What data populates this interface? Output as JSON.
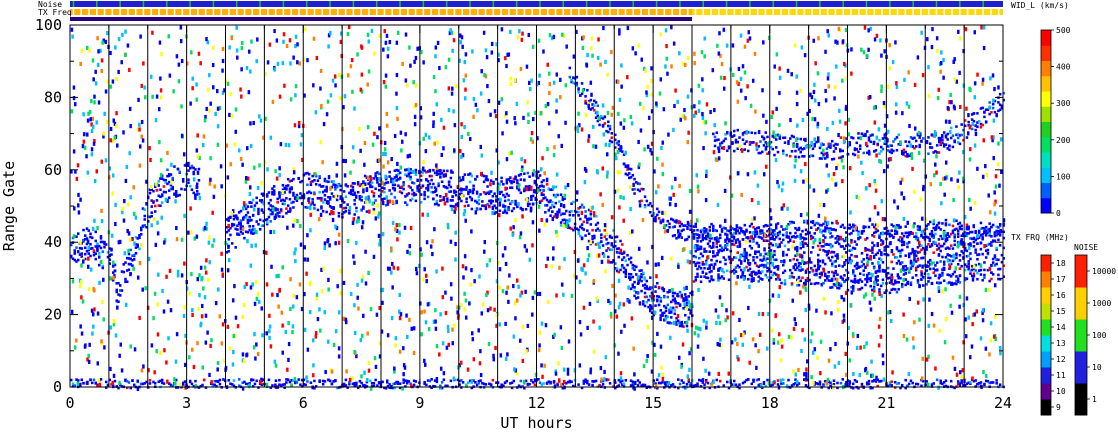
{
  "chart_data": {
    "type": "heatmap",
    "xlabel": "UT hours",
    "ylabel": "Range Gate",
    "xlim": [
      0,
      24
    ],
    "ylim": [
      0,
      100
    ],
    "x_ticks": [
      "0",
      "3",
      "6",
      "9",
      "12",
      "15",
      "18",
      "21",
      "24"
    ],
    "y_ticks": [
      "0",
      "20",
      "40",
      "60",
      "80",
      "100"
    ],
    "vertical_lines_hours": [
      1,
      2,
      3,
      4,
      5,
      6,
      7,
      8,
      9,
      10,
      11,
      12,
      13,
      14,
      15,
      16,
      17,
      18,
      19,
      20,
      21,
      22,
      23
    ],
    "top_strips": [
      {
        "label": "Noise",
        "segments": [
          {
            "from": 0,
            "to": 24,
            "color": "#2020d0"
          }
        ],
        "ticks_color": "#20c020"
      },
      {
        "label": "TX Freq",
        "segments": [
          {
            "from": 0,
            "to": 16,
            "color": "#ffb000"
          },
          {
            "from": 16,
            "to": 24,
            "color": "#ffd800"
          }
        ],
        "ticks_color": "#ffffff"
      },
      {
        "label": "",
        "segments": [
          {
            "from": 0,
            "to": 16,
            "color": "#2a0080"
          },
          {
            "from": 16,
            "to": 24,
            "color": "#ffffff"
          }
        ]
      }
    ],
    "width_scale": {
      "title": "WID_L (km/s)",
      "min": 0,
      "max": 500,
      "ticks": [
        "0",
        "100",
        "200",
        "300",
        "400",
        "500"
      ],
      "colors": [
        "#0000ff",
        "#0060ff",
        "#00c0ff",
        "#00e0c0",
        "#00e060",
        "#20d020",
        "#a0e000",
        "#ffff00",
        "#ffc000",
        "#ff8000",
        "#ff3000",
        "#ff0000"
      ]
    },
    "txfreq_scale": {
      "title": "TX FRQ (MHz)",
      "ticks": [
        "9",
        "10",
        "11",
        "12",
        "13",
        "14",
        "15",
        "16",
        "17",
        "18"
      ],
      "colors": [
        "#000000",
        "#600090",
        "#2020e0",
        "#00a0ff",
        "#00e0e0",
        "#20e020",
        "#c0e000",
        "#ffd000",
        "#ff8000",
        "#ff2000"
      ]
    },
    "noise_scale": {
      "title": "NOISE",
      "ticks": [
        "1",
        "10",
        "100",
        "1000",
        "10000"
      ],
      "colors": [
        "#000000",
        "#2020e0",
        "#20e020",
        "#ffd000",
        "#ff2000"
      ]
    },
    "scatter_bands": [
      {
        "points": [
          [
            0.0,
            38
          ],
          [
            0.5,
            40
          ],
          [
            1.0,
            36
          ],
          [
            1.2,
            26
          ],
          [
            1.5,
            35
          ],
          [
            2.0,
            50
          ],
          [
            2.5,
            57
          ],
          [
            3.0,
            58
          ],
          [
            3.3,
            56
          ]
        ],
        "width": 9
      },
      {
        "points": [
          [
            4.0,
            42
          ],
          [
            5.0,
            50
          ],
          [
            6.0,
            55
          ],
          [
            7.0,
            52
          ],
          [
            8.0,
            55
          ],
          [
            9.0,
            56
          ],
          [
            10.0,
            55
          ],
          [
            11.0,
            53
          ],
          [
            12.0,
            55
          ],
          [
            12.6,
            50
          ],
          [
            13.0,
            47
          ],
          [
            13.5,
            44
          ],
          [
            14.0,
            38
          ],
          [
            14.5,
            30
          ],
          [
            15.0,
            25
          ],
          [
            15.5,
            22
          ],
          [
            16.0,
            22
          ]
        ],
        "width": 10
      },
      {
        "points": [
          [
            16.0,
            36
          ],
          [
            17.0,
            37
          ],
          [
            18.0,
            36
          ],
          [
            19.0,
            35
          ],
          [
            20.0,
            34
          ],
          [
            21.0,
            33
          ],
          [
            22.0,
            35
          ],
          [
            23.0,
            36
          ],
          [
            24.0,
            37
          ]
        ],
        "width": 14
      },
      {
        "points": [
          [
            12.8,
            88
          ],
          [
            13.3,
            80
          ],
          [
            14.0,
            68
          ],
          [
            14.5,
            56
          ],
          [
            15.0,
            48
          ],
          [
            15.5,
            44
          ],
          [
            16.0,
            43
          ],
          [
            17.0,
            43
          ],
          [
            18.0,
            43
          ],
          [
            19.0,
            44
          ],
          [
            20.0,
            43
          ],
          [
            21.0,
            43
          ],
          [
            22.0,
            44
          ],
          [
            23.0,
            44
          ],
          [
            24.0,
            43
          ]
        ],
        "width": 5
      },
      {
        "points": [
          [
            0.0,
            1
          ],
          [
            6.0,
            1
          ],
          [
            10.0,
            1
          ],
          [
            13.0,
            1
          ],
          [
            16.0,
            1
          ],
          [
            20.0,
            1
          ],
          [
            24.0,
            1
          ]
        ],
        "width": 3
      },
      {
        "points": [
          [
            16.5,
            69
          ],
          [
            17.5,
            68
          ],
          [
            18.5,
            67
          ],
          [
            19.5,
            66
          ],
          [
            20.5,
            68
          ],
          [
            21.5,
            67
          ],
          [
            22.5,
            68
          ],
          [
            23.5,
            75
          ],
          [
            24.0,
            80
          ]
        ],
        "width": 6
      }
    ]
  }
}
